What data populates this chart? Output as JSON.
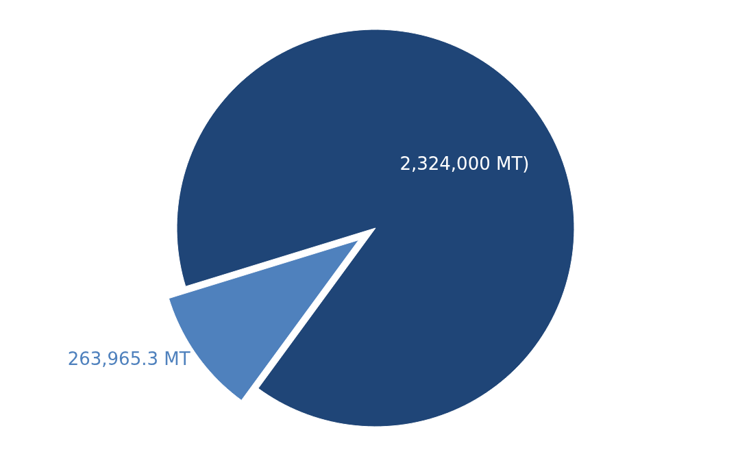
{
  "chart_data": {
    "type": "pie",
    "categories": [
      null,
      null
    ],
    "values": [
      2324000,
      263965.3
    ],
    "colors": [
      "#1f4577",
      "#4f81bd"
    ],
    "value_labels": [
      "2,324,000 MT)",
      "263,965.3 MT"
    ]
  }
}
